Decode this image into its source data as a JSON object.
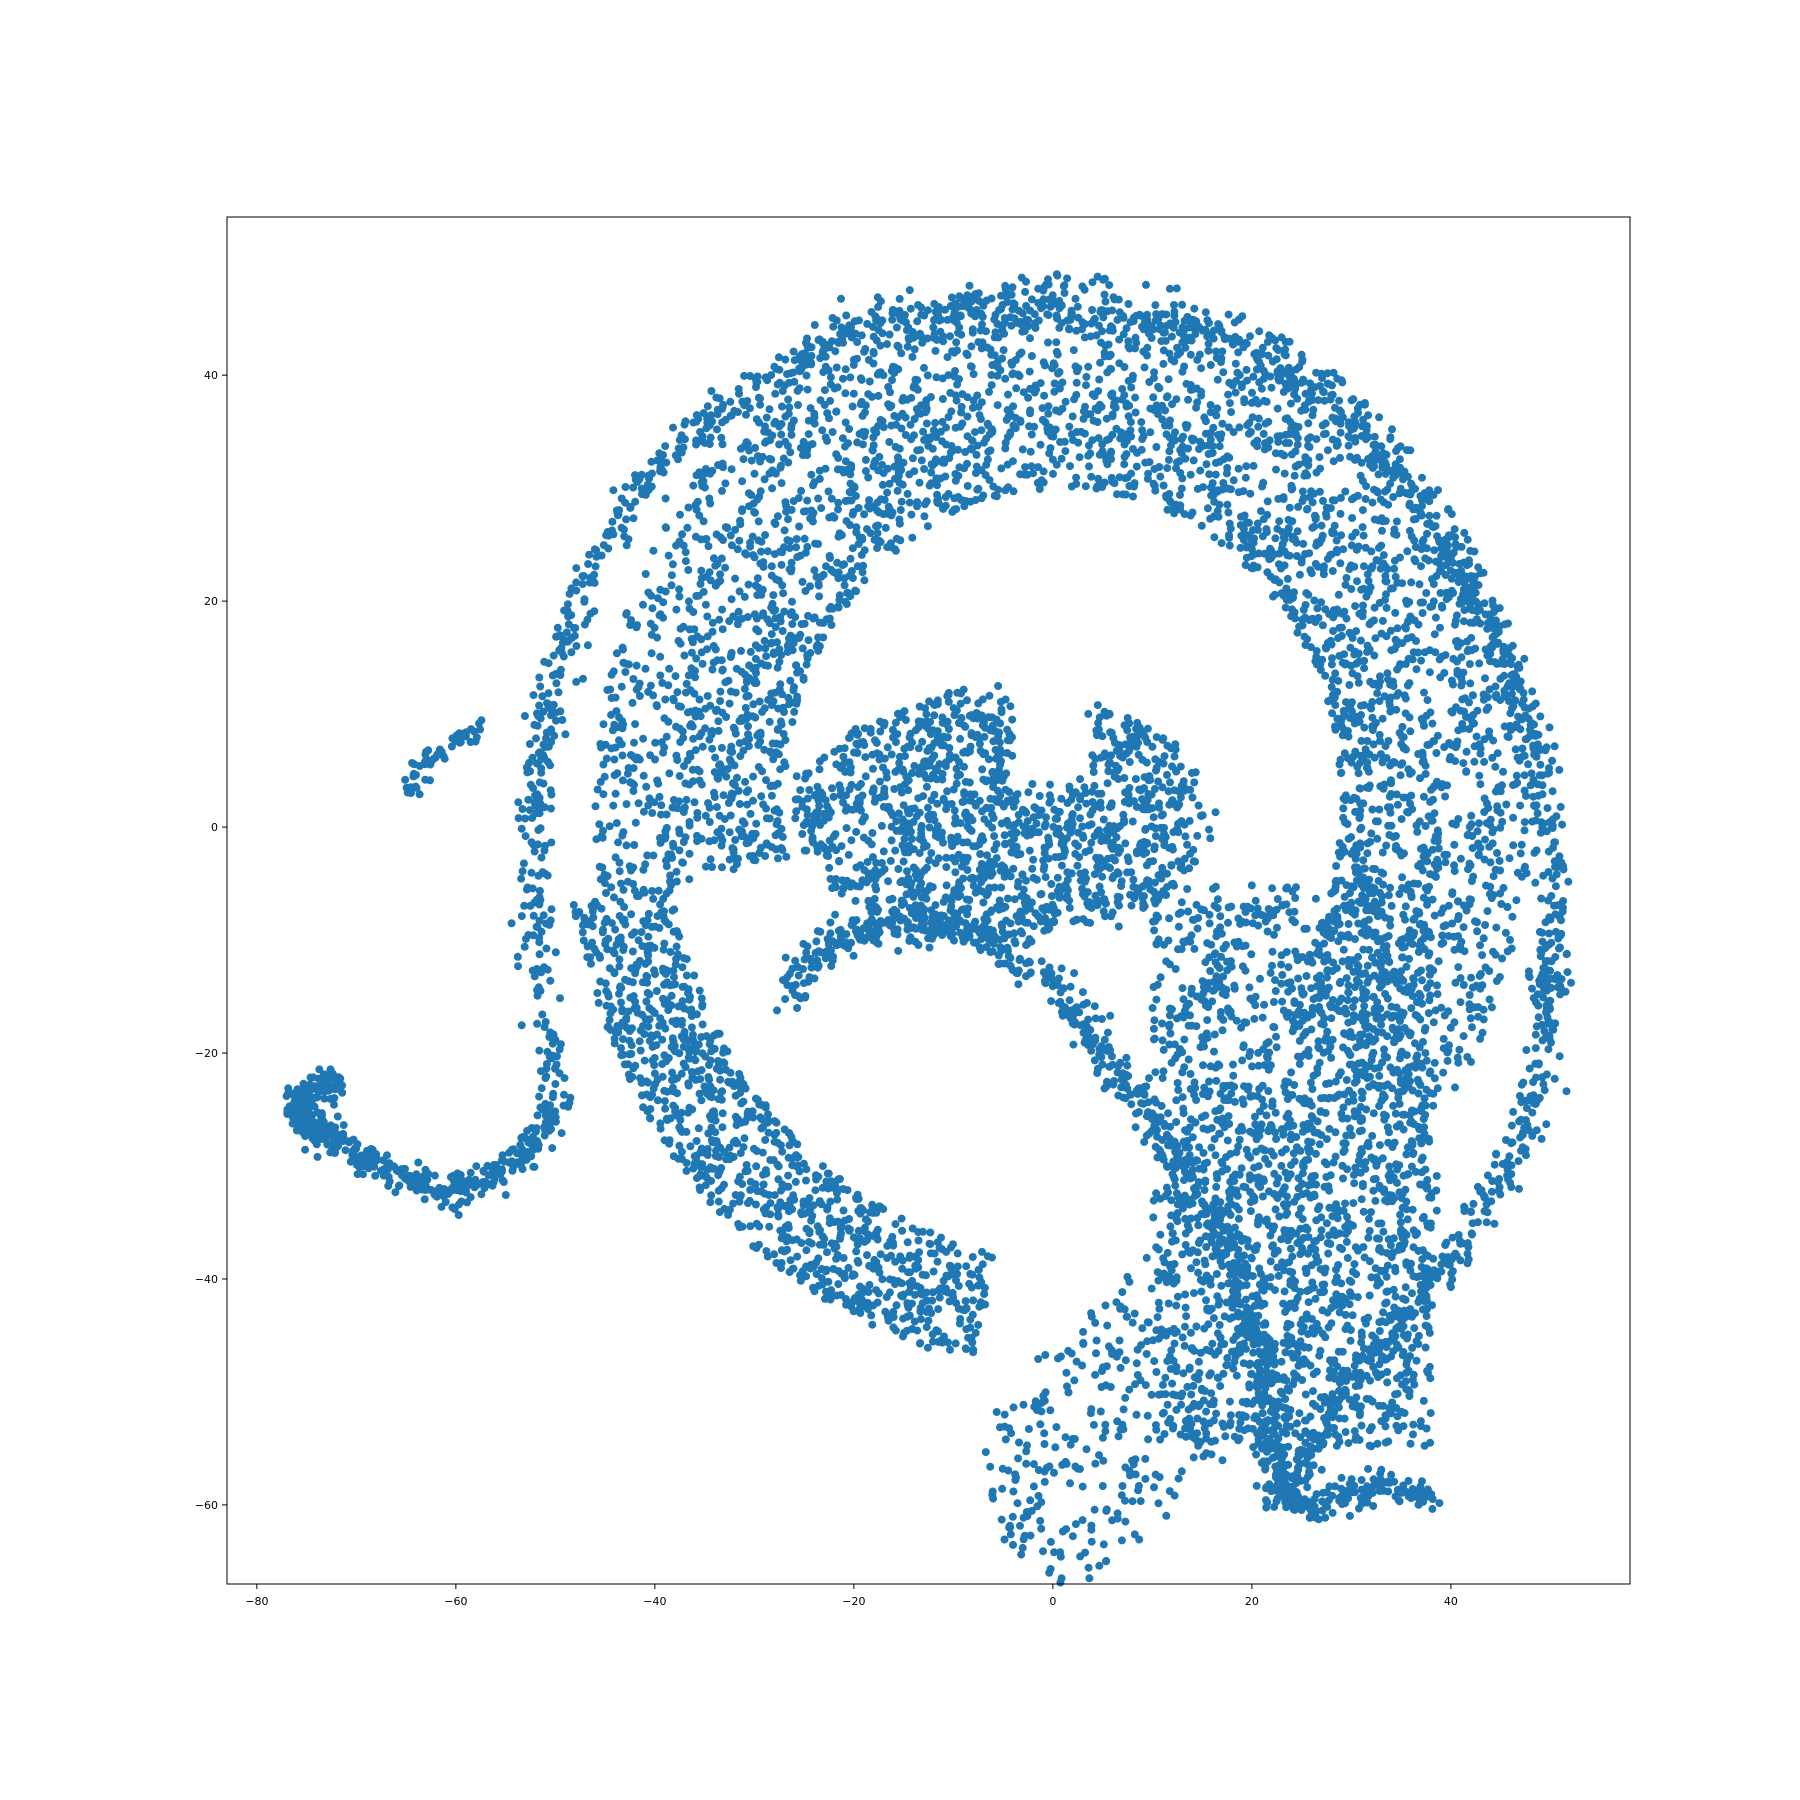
{
  "chart_data": {
    "type": "scatter",
    "title": "",
    "xlabel": "",
    "ylabel": "",
    "xlim": [
      -83,
      58
    ],
    "ylim": [
      -67,
      54
    ],
    "xticks": [
      -80,
      -60,
      -40,
      -20,
      0,
      20,
      40
    ],
    "yticks": [
      -60,
      -40,
      -20,
      0,
      20,
      40
    ],
    "xtick_labels": [
      "−80",
      "−60",
      "−40",
      "−20",
      "0",
      "20",
      "40"
    ],
    "ytick_labels": [
      "−60",
      "−40",
      "−20",
      "0",
      "20",
      "40"
    ],
    "grid": false,
    "legend": "none",
    "marker_color": "#1f77b4",
    "series": [
      {
        "shape_description_points": "A dense crescent/hook-shaped point cloud (t-SNE embedding). Points below trace the principal curves; a procedural sampler fills the body around them.",
        "outer_arc": [
          [
            -50,
            -25
          ],
          [
            -52,
            -10
          ],
          [
            -52,
            0
          ],
          [
            -51,
            10
          ],
          [
            -47,
            22
          ],
          [
            -40,
            32
          ],
          [
            -28,
            40
          ],
          [
            -18,
            45
          ],
          [
            -5,
            46
          ],
          [
            8,
            45
          ],
          [
            20,
            42
          ],
          [
            30,
            36
          ],
          [
            38,
            27
          ],
          [
            44,
            18
          ],
          [
            48,
            8
          ],
          [
            50,
            -2
          ],
          [
            50,
            -12
          ],
          [
            49,
            -22
          ],
          [
            46,
            -30
          ],
          [
            40,
            -38
          ],
          [
            34,
            -45
          ],
          [
            28,
            -52
          ],
          [
            23,
            -59
          ]
        ],
        "inner_arc": [
          [
            -27,
            -15
          ],
          [
            -22,
            -10
          ],
          [
            -15,
            -8
          ],
          [
            -8,
            -9
          ],
          [
            0,
            -14
          ],
          [
            7,
            -22
          ],
          [
            13,
            -30
          ],
          [
            18,
            -38
          ],
          [
            21,
            -46
          ],
          [
            22,
            -54
          ],
          [
            23,
            -59
          ]
        ],
        "left_tail": [
          [
            -50,
            -25
          ],
          [
            -53,
            -29
          ],
          [
            -58,
            -32
          ],
          [
            -63,
            -32
          ],
          [
            -68,
            -30
          ],
          [
            -72,
            -28
          ],
          [
            -75,
            -26
          ],
          [
            -76,
            -24
          ],
          [
            -74,
            -23
          ],
          [
            -72,
            -22.5
          ]
        ],
        "bottom_tail": [
          [
            23,
            -59
          ],
          [
            26,
            -60
          ],
          [
            30,
            -59
          ],
          [
            34,
            -58
          ],
          [
            38,
            -60
          ]
        ],
        "stray_branch": [
          [
            -65,
            3
          ],
          [
            -63,
            6
          ],
          [
            -60,
            7.5
          ],
          [
            -57,
            9
          ]
        ]
      }
    ]
  }
}
